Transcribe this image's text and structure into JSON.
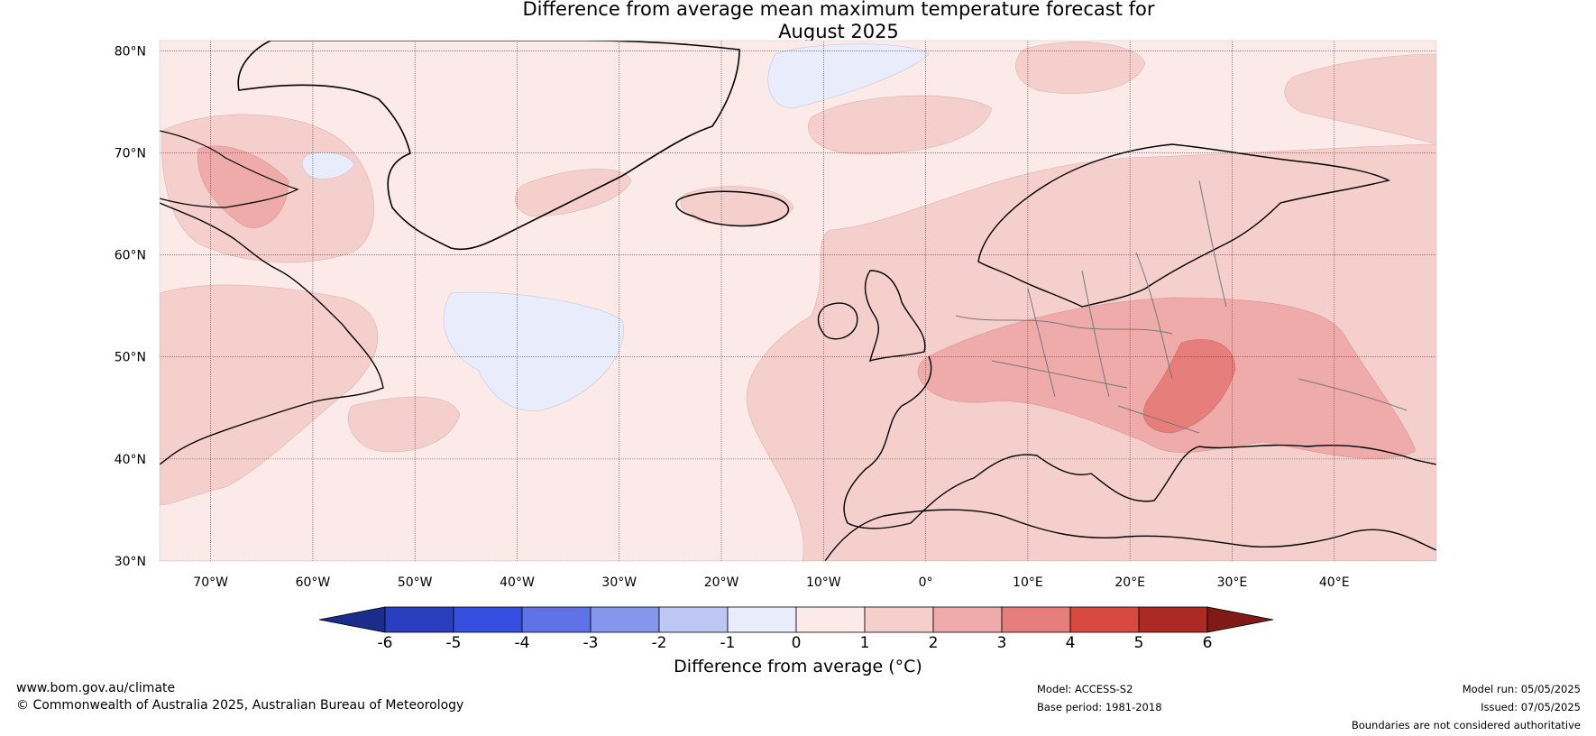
{
  "title_line1": "Difference from average mean maximum temperature forecast for",
  "title_line2": "August 2025",
  "map": {
    "lon_range": [
      -75,
      50
    ],
    "lat_range": [
      30,
      81
    ],
    "lat_ticks": [
      "80°N",
      "70°N",
      "60°N",
      "50°N",
      "40°N",
      "30°N"
    ],
    "lon_ticks": [
      "70°W",
      "60°W",
      "50°W",
      "40°W",
      "30°W",
      "20°W",
      "10°W",
      "0°",
      "10°E",
      "20°E",
      "30°E",
      "40°E"
    ],
    "background_color": "#fbeae8"
  },
  "colorbar": {
    "label": "Difference from average (°C)",
    "ticks": [
      "-6",
      "-5",
      "-4",
      "-3",
      "-2",
      "-1",
      "0",
      "1",
      "2",
      "3",
      "4",
      "5",
      "6"
    ],
    "colors": [
      "#1a2c8c",
      "#2a3fc0",
      "#3550df",
      "#5d73e6",
      "#8497ec",
      "#bcc7f4",
      "#e8ecfb",
      "#fbeae8",
      "#f5cfcc",
      "#eeabaa",
      "#e67f7b",
      "#d84a40",
      "#ad2a24",
      "#7f1a16"
    ]
  },
  "footer": {
    "website": "www.bom.gov.au/climate",
    "copyright": "© Commonwealth of Australia 2025, Australian Bureau of Meteorology",
    "model": "Model: ACCESS-S2",
    "base_period": "Base period: 1981-2018",
    "model_run": "Model run: 05/05/2025",
    "issued": "Issued: 07/05/2025",
    "disclaimer": "Boundaries are not considered authoritative"
  }
}
